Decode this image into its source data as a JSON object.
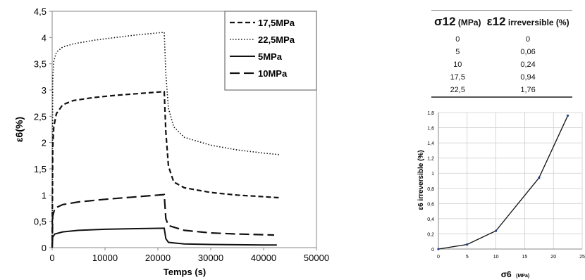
{
  "chart_data": [
    {
      "type": "line",
      "xlabel": "Temps (s)",
      "ylabel": "ε6(%)",
      "xlim": [
        0,
        50000
      ],
      "ylim": [
        0,
        4.5
      ],
      "x_ticks": [
        "0",
        "10000",
        "20000",
        "30000",
        "40000",
        "50000"
      ],
      "y_ticks": [
        "0",
        "0,5",
        "1",
        "1,5",
        "2",
        "2,5",
        "3",
        "3,5",
        "4",
        "4,5"
      ],
      "legend_position": "top-right",
      "grid": false,
      "series": [
        {
          "name": "17,5MPa",
          "dash": "dashed",
          "points": [
            [
              0,
              0
            ],
            [
              100,
              1.9
            ],
            [
              300,
              2.3
            ],
            [
              800,
              2.55
            ],
            [
              2000,
              2.72
            ],
            [
              4000,
              2.8
            ],
            [
              8000,
              2.86
            ],
            [
              12000,
              2.9
            ],
            [
              16000,
              2.93
            ],
            [
              21200,
              2.97
            ],
            [
              21500,
              2.2
            ],
            [
              22000,
              1.55
            ],
            [
              23000,
              1.25
            ],
            [
              25000,
              1.14
            ],
            [
              30000,
              1.05
            ],
            [
              35000,
              1.0
            ],
            [
              40000,
              0.97
            ],
            [
              43000,
              0.95
            ]
          ]
        },
        {
          "name": "22,5MPa",
          "dash": "dotted",
          "points": [
            [
              0,
              0
            ],
            [
              100,
              3.2
            ],
            [
              300,
              3.55
            ],
            [
              800,
              3.72
            ],
            [
              2000,
              3.82
            ],
            [
              4000,
              3.88
            ],
            [
              8000,
              3.95
            ],
            [
              12000,
              4.0
            ],
            [
              16000,
              4.05
            ],
            [
              21200,
              4.1
            ],
            [
              21500,
              3.3
            ],
            [
              22000,
              2.65
            ],
            [
              23000,
              2.3
            ],
            [
              25000,
              2.1
            ],
            [
              30000,
              1.95
            ],
            [
              35000,
              1.86
            ],
            [
              40000,
              1.8
            ],
            [
              43000,
              1.77
            ]
          ]
        },
        {
          "name": "5MPa",
          "dash": "solid",
          "points": [
            [
              0,
              0
            ],
            [
              100,
              0.2
            ],
            [
              500,
              0.26
            ],
            [
              2000,
              0.3
            ],
            [
              5000,
              0.33
            ],
            [
              10000,
              0.35
            ],
            [
              15000,
              0.36
            ],
            [
              21200,
              0.37
            ],
            [
              21500,
              0.17
            ],
            [
              22000,
              0.1
            ],
            [
              25000,
              0.07
            ],
            [
              30000,
              0.06
            ],
            [
              40000,
              0.05
            ],
            [
              42500,
              0.05
            ]
          ]
        },
        {
          "name": "10MPa",
          "dash": "longdash",
          "points": [
            [
              0,
              0
            ],
            [
              100,
              0.6
            ],
            [
              500,
              0.75
            ],
            [
              2000,
              0.82
            ],
            [
              5000,
              0.87
            ],
            [
              10000,
              0.92
            ],
            [
              15000,
              0.96
            ],
            [
              21200,
              1.01
            ],
            [
              21500,
              0.55
            ],
            [
              22000,
              0.42
            ],
            [
              25000,
              0.33
            ],
            [
              30000,
              0.28
            ],
            [
              35000,
              0.26
            ],
            [
              42000,
              0.24
            ]
          ]
        }
      ]
    },
    {
      "type": "table",
      "columns": [
        {
          "symbol": "σ12",
          "unit": "(MPa)"
        },
        {
          "symbol": "ε12",
          "unit": "irreversible (%)"
        }
      ],
      "rows": [
        [
          "0",
          "0"
        ],
        [
          "5",
          "0,06"
        ],
        [
          "10",
          "0,24"
        ],
        [
          "17,5",
          "0,94"
        ],
        [
          "22,5",
          "1,76"
        ]
      ]
    },
    {
      "type": "line",
      "xlabel_symbol": "σ6",
      "xlabel_unit": "(MPa)",
      "ylabel": "ε6 irreversible (%)",
      "xlim": [
        0,
        25
      ],
      "ylim": [
        0,
        1.8
      ],
      "x_ticks": [
        "0",
        "5",
        "10",
        "15",
        "20",
        "25"
      ],
      "y_ticks": [
        "0",
        "0,2",
        "0,4",
        "0,6",
        "0,8",
        "1",
        "1,2",
        "1,4",
        "1,6",
        "1,8"
      ],
      "grid": true,
      "series": [
        {
          "x": [
            0,
            5,
            10,
            17.5,
            22.5
          ],
          "y": [
            0,
            0.06,
            0.24,
            0.94,
            1.76
          ]
        }
      ]
    }
  ]
}
